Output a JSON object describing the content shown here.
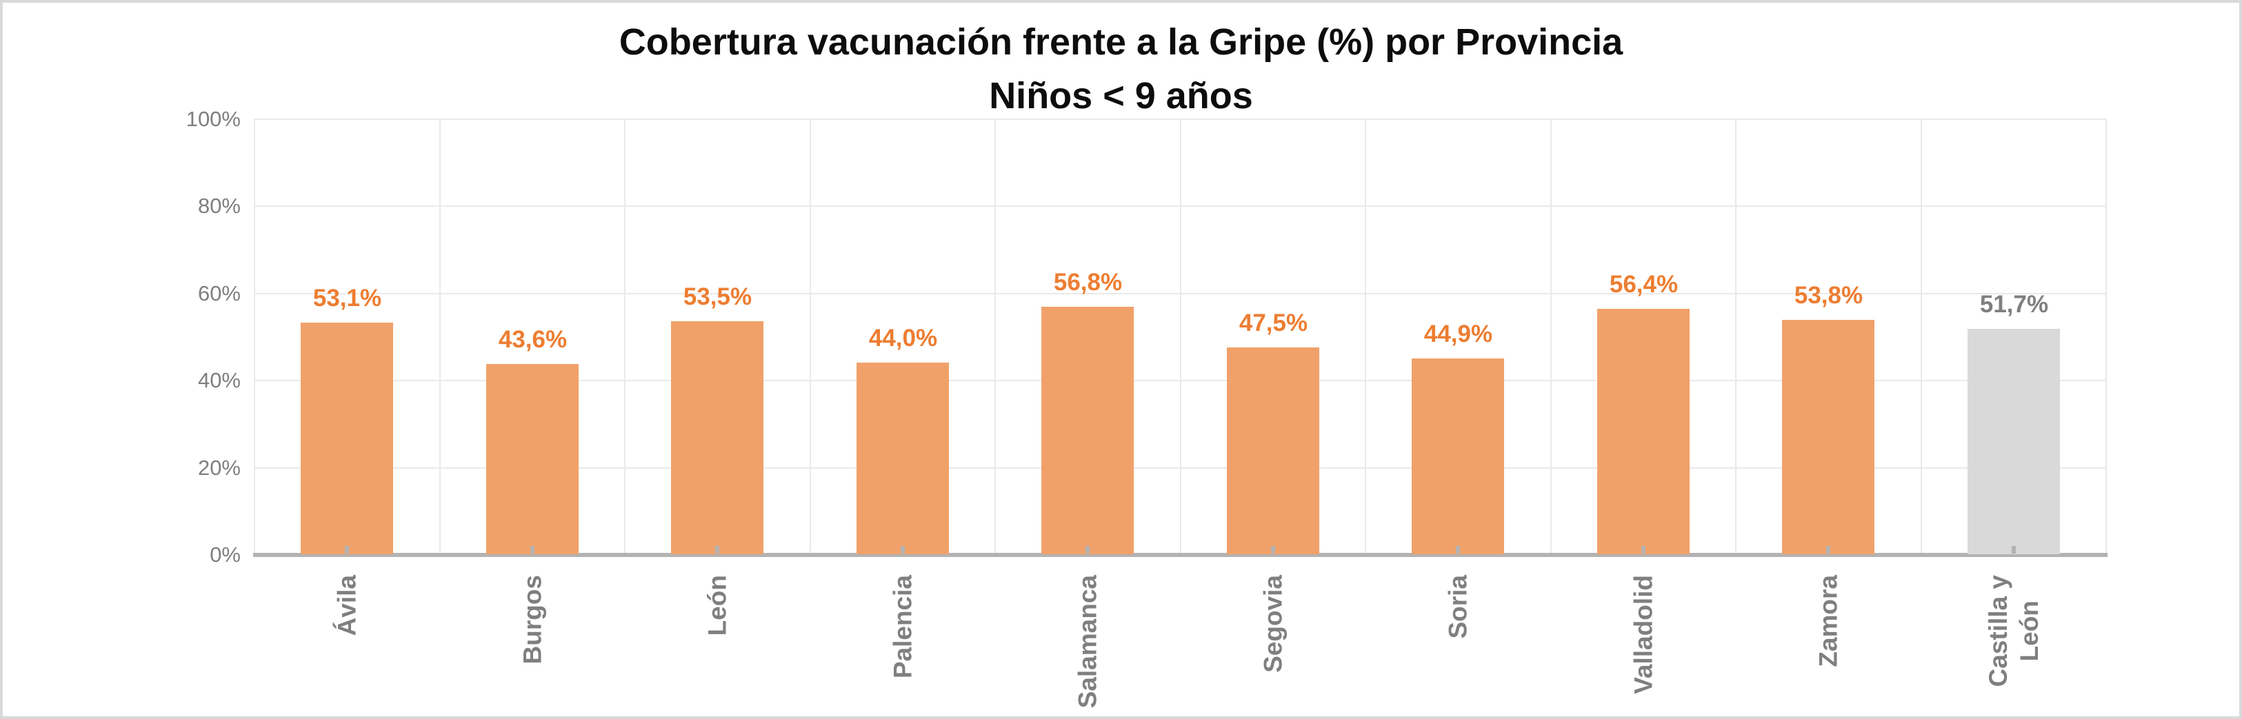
{
  "chart_data": {
    "type": "bar",
    "title": "Cobertura vacunación frente a la Gripe (%) por Provincia",
    "subtitle": "Niños < 9 años",
    "categories": [
      "Ávila",
      "Burgos",
      "León",
      "Palencia",
      "Salamanca",
      "Segovia",
      "Soria",
      "Valladolid",
      "Zamora",
      "Castilla y León"
    ],
    "values": [
      53.1,
      43.6,
      53.5,
      44.0,
      56.8,
      47.5,
      44.9,
      56.4,
      53.8,
      51.7
    ],
    "value_labels": [
      "53,1%",
      "43,6%",
      "53,5%",
      "44,0%",
      "56,8%",
      "47,5%",
      "44,9%",
      "56,4%",
      "53,8%",
      "51,7%"
    ],
    "category_tick_lines": [
      [
        "Ávila"
      ],
      [
        "Burgos"
      ],
      [
        "León"
      ],
      [
        "Palencia"
      ],
      [
        "Salamanca"
      ],
      [
        "Segovia"
      ],
      [
        "Soria"
      ],
      [
        "Valladolid"
      ],
      [
        "Zamora"
      ],
      [
        "Castilla y",
        "León"
      ]
    ],
    "summary_index": 9,
    "ylim": [
      0,
      100
    ],
    "ytick_values": [
      0,
      20,
      40,
      60,
      80,
      100
    ],
    "ytick_labels": [
      "0%",
      "20%",
      "40%",
      "60%",
      "80%",
      "100%"
    ],
    "grid": true,
    "legend": false
  },
  "colors": {
    "bar_default": "#F0A169",
    "bar_summary": "#D9D9D9",
    "value_label_default": "#ED7D31",
    "value_label_summary": "#7F7F7F",
    "axis_text": "#7F7F7F",
    "category_text": "#7F7F7F",
    "gridline": "#E9E9E9",
    "axis_line": "#B3B3B3",
    "tick_mark": "#B3B3B3",
    "title_text": "#0D0D0D",
    "frame_border": "#D9D9D9",
    "background": "#FFFFFF"
  }
}
